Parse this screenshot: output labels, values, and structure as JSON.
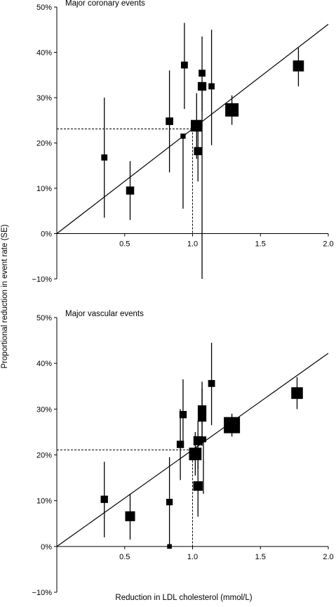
{
  "figure": {
    "ylabel": "Proportional reduction in event rate (SE)",
    "xlabel": "Reduction in LDL cholesterol (mmol/L)"
  },
  "chart_data": [
    {
      "type": "scatter",
      "title": "Major coronary events",
      "xlim": [
        0,
        2.0
      ],
      "ylim": [
        -10,
        50
      ],
      "xticks": [
        0.5,
        1.0,
        1.5,
        2.0
      ],
      "xtick_labels": [
        "0.5",
        "1.0",
        "1.5",
        "2.0"
      ],
      "yticks": [
        -10,
        0,
        10,
        20,
        30,
        40,
        50
      ],
      "ytick_labels": [
        "−10%",
        "0%",
        "10%",
        "20%",
        "30%",
        "40%",
        "50%"
      ],
      "points": [
        {
          "x": 0.35,
          "y": 16.8,
          "lo": 3.5,
          "hi": 30.0,
          "w": 0.1
        },
        {
          "x": 0.54,
          "y": 9.5,
          "lo": 3.0,
          "hi": 16.0,
          "w": 0.25
        },
        {
          "x": 0.83,
          "y": 24.8,
          "lo": 13.5,
          "hi": 36.0,
          "w": 0.2
        },
        {
          "x": 0.93,
          "y": 21.5,
          "lo": 5.5,
          "hi": 22.0,
          "w": 0.05
        },
        {
          "x": 0.94,
          "y": 37.2,
          "lo": 27.5,
          "hi": 46.5,
          "w": 0.15
        },
        {
          "x": 1.03,
          "y": 23.8,
          "lo": 16.5,
          "hi": 31.0,
          "w": 0.7
        },
        {
          "x": 1.04,
          "y": 18.2,
          "lo": 11.5,
          "hi": 24.5,
          "w": 0.25
        },
        {
          "x": 1.07,
          "y": 35.4,
          "lo": 27.0,
          "hi": 43.5,
          "w": 0.15
        },
        {
          "x": 1.07,
          "y": 32.5,
          "lo": -10.0,
          "hi": 33.0,
          "w": 0.3
        },
        {
          "x": 1.14,
          "y": 32.5,
          "lo": 19.5,
          "hi": 45.0,
          "w": 0.1
        },
        {
          "x": 1.29,
          "y": 27.3,
          "lo": 24.0,
          "hi": 30.5,
          "w": 1.0
        },
        {
          "x": 1.78,
          "y": 37.0,
          "lo": 32.5,
          "hi": 41.0,
          "w": 0.6
        }
      ],
      "fit_line": {
        "x": [
          0,
          2.0
        ],
        "y": [
          0,
          46.2
        ]
      },
      "reference": {
        "x": 1.0,
        "y": 23.1
      }
    },
    {
      "type": "scatter",
      "title": "Major vascular events",
      "xlim": [
        0,
        2.0
      ],
      "ylim": [
        -10,
        50
      ],
      "xticks": [
        0.5,
        1.0,
        1.5,
        2.0
      ],
      "xtick_labels": [
        "0.5",
        "1.0",
        "1.5",
        "2.0"
      ],
      "yticks": [
        -10,
        0,
        10,
        20,
        30,
        40,
        50
      ],
      "ytick_labels": [
        "−10%",
        "0%",
        "10%",
        "20%",
        "30%",
        "40%",
        "50%"
      ],
      "points": [
        {
          "x": 0.35,
          "y": 10.3,
          "lo": 2.0,
          "hi": 18.5,
          "w": 0.18
        },
        {
          "x": 0.54,
          "y": 6.6,
          "lo": 1.5,
          "hi": 11.5,
          "w": 0.45
        },
        {
          "x": 0.83,
          "y": 9.7,
          "lo": 0.0,
          "hi": 19.5,
          "w": 0.12
        },
        {
          "x": 0.83,
          "y": 0.0,
          "lo": 0.0,
          "hi": 0.5,
          "w": 0.03
        },
        {
          "x": 0.91,
          "y": 22.3,
          "lo": 14.5,
          "hi": 30.0,
          "w": 0.18
        },
        {
          "x": 0.93,
          "y": 28.8,
          "lo": 21.5,
          "hi": 36.5,
          "w": 0.18
        },
        {
          "x": 1.02,
          "y": 20.2,
          "lo": 15.5,
          "hi": 25.0,
          "w": 0.85
        },
        {
          "x": 1.04,
          "y": 23.1,
          "lo": 17.0,
          "hi": 27.5,
          "w": 0.35
        },
        {
          "x": 1.04,
          "y": 13.2,
          "lo": 6.5,
          "hi": 20.0,
          "w": 0.4
        },
        {
          "x": 1.07,
          "y": 28.2,
          "lo": 22.0,
          "hi": 34.5,
          "w": 0.3
        },
        {
          "x": 1.07,
          "y": 29.9,
          "lo": 24.0,
          "hi": 36.0,
          "w": 0.3
        },
        {
          "x": 1.08,
          "y": 23.4,
          "lo": 11.5,
          "hi": 24.0,
          "w": 0.08
        },
        {
          "x": 1.14,
          "y": 35.6,
          "lo": 26.5,
          "hi": 44.5,
          "w": 0.15
        },
        {
          "x": 1.29,
          "y": 26.5,
          "lo": 24.0,
          "hi": 29.0,
          "w": 1.6
        },
        {
          "x": 1.77,
          "y": 33.5,
          "lo": 30.0,
          "hi": 37.0,
          "w": 0.7
        }
      ],
      "fit_line": {
        "x": [
          0,
          2.0
        ],
        "y": [
          0,
          42.2
        ]
      },
      "reference": {
        "x": 1.0,
        "y": 21.1
      }
    }
  ]
}
